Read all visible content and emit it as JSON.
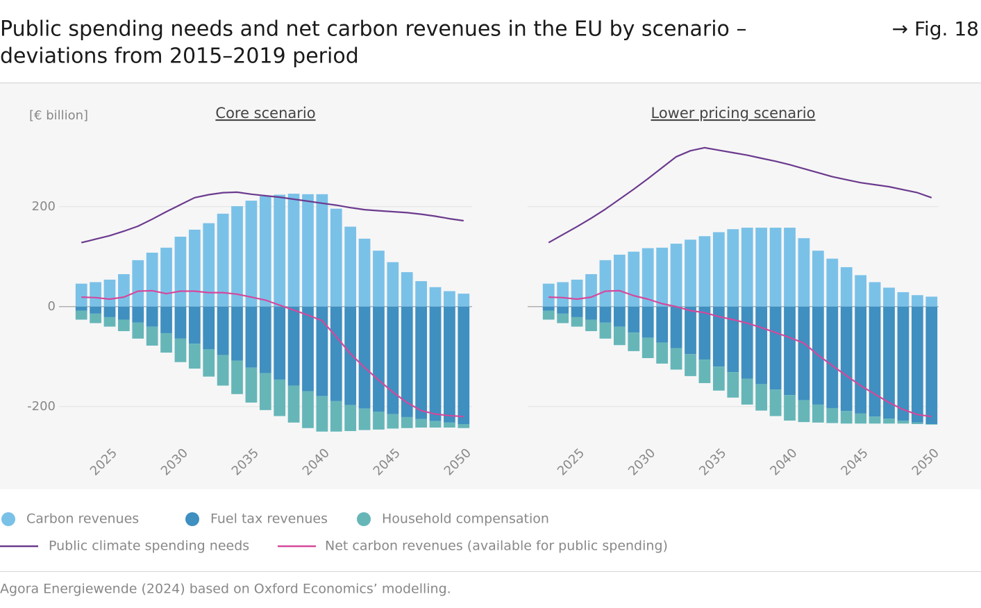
{
  "title_lines": [
    "Public spending needs and net carbon revenues in the EU by scenario –",
    "deviations from 2015–2019 period"
  ],
  "fig_label": "→ Fig. 18",
  "unit": "[€ billion]",
  "source": "Agora Energiewende (2024) based on Oxford Economics’ modelling.",
  "chart_data": [
    {
      "type": "bar",
      "title": "Core scenario",
      "x": [
        2023,
        2024,
        2025,
        2026,
        2027,
        2028,
        2029,
        2030,
        2031,
        2032,
        2033,
        2034,
        2035,
        2036,
        2037,
        2038,
        2039,
        2040,
        2041,
        2042,
        2043,
        2044,
        2045,
        2046,
        2047,
        2048,
        2049,
        2050
      ],
      "xlim": [
        2022.5,
        2050.5
      ],
      "xticks": [
        2025,
        2030,
        2035,
        2040,
        2045,
        2050
      ],
      "ylim": [
        -260,
        340
      ],
      "yticks": [
        -200,
        0,
        200
      ],
      "grid": true,
      "series": [
        {
          "name": "Carbon revenues",
          "type": "bar",
          "color": "#7ac1e8",
          "values": [
            46,
            49,
            54,
            65,
            93,
            108,
            118,
            140,
            154,
            167,
            186,
            201,
            212,
            221,
            224,
            226,
            225,
            225,
            196,
            160,
            136,
            112,
            89,
            69,
            51,
            39,
            31,
            26
          ]
        },
        {
          "name": "Fuel tax revenues",
          "type": "bar",
          "color": "#3f8fc0",
          "values": [
            -8,
            -14,
            -21,
            -26,
            -32,
            -40,
            -53,
            -64,
            -74,
            -85,
            -97,
            -108,
            -122,
            -133,
            -146,
            -158,
            -169,
            -179,
            -189,
            -197,
            -204,
            -210,
            -215,
            -221,
            -225,
            -229,
            -232,
            -235
          ]
        },
        {
          "name": "Household compensation",
          "type": "bar",
          "color": "#66b6b8",
          "values": [
            -18,
            -19,
            -19,
            -23,
            -32,
            -38,
            -39,
            -47,
            -50,
            -55,
            -61,
            -67,
            -70,
            -74,
            -73,
            -74,
            -74,
            -71,
            -61,
            -52,
            -43,
            -36,
            -29,
            -22,
            -17,
            -13,
            -10,
            -8
          ]
        },
        {
          "name": "Public climate spending needs",
          "type": "line",
          "color": "#6b3a8e",
          "values": [
            128,
            135,
            142,
            151,
            161,
            175,
            190,
            204,
            218,
            224,
            228,
            229,
            225,
            222,
            219,
            215,
            211,
            207,
            203,
            198,
            194,
            192,
            190,
            188,
            185,
            181,
            176,
            172
          ]
        },
        {
          "name": "Net carbon revenues (available for public spending)",
          "type": "line",
          "color": "#d5489b",
          "values": [
            19,
            18,
            15,
            19,
            31,
            32,
            26,
            31,
            31,
            28,
            28,
            25,
            19,
            13,
            3,
            -7,
            -17,
            -28,
            -60,
            -94,
            -122,
            -147,
            -171,
            -192,
            -208,
            -215,
            -218,
            -220
          ]
        }
      ]
    },
    {
      "type": "bar",
      "title": "Lower pricing scenario",
      "x": [
        2023,
        2024,
        2025,
        2026,
        2027,
        2028,
        2029,
        2030,
        2031,
        2032,
        2033,
        2034,
        2035,
        2036,
        2037,
        2038,
        2039,
        2040,
        2041,
        2042,
        2043,
        2044,
        2045,
        2046,
        2047,
        2048,
        2049,
        2050
      ],
      "xlim": [
        2022.5,
        2050.5
      ],
      "xticks": [
        2025,
        2030,
        2035,
        2040,
        2045,
        2050
      ],
      "ylim": [
        -260,
        340
      ],
      "yticks": [
        -200,
        0,
        200
      ],
      "grid": true,
      "series": [
        {
          "name": "Carbon revenues",
          "type": "bar",
          "color": "#7ac1e8",
          "values": [
            46,
            49,
            54,
            65,
            93,
            104,
            110,
            117,
            118,
            126,
            134,
            141,
            149,
            155,
            158,
            158,
            158,
            158,
            137,
            112,
            96,
            79,
            63,
            49,
            38,
            29,
            23,
            20
          ]
        },
        {
          "name": "Fuel tax revenues",
          "type": "bar",
          "color": "#3f8fc0",
          "values": [
            -8,
            -14,
            -21,
            -26,
            -32,
            -40,
            -52,
            -62,
            -72,
            -83,
            -95,
            -106,
            -120,
            -131,
            -144,
            -155,
            -166,
            -177,
            -187,
            -196,
            -203,
            -209,
            -214,
            -220,
            -224,
            -228,
            -232,
            -235
          ]
        },
        {
          "name": "Household compensation",
          "type": "bar",
          "color": "#66b6b8",
          "values": [
            -18,
            -19,
            -19,
            -23,
            -32,
            -37,
            -37,
            -41,
            -42,
            -43,
            -44,
            -47,
            -48,
            -51,
            -52,
            -53,
            -53,
            -51,
            -44,
            -36,
            -30,
            -25,
            -20,
            -14,
            -10,
            -6,
            -3,
            -1
          ]
        },
        {
          "name": "Public climate spending needs",
          "type": "line",
          "color": "#6b3a8e",
          "values": [
            128,
            144,
            160,
            177,
            195,
            215,
            235,
            256,
            278,
            300,
            312,
            318,
            313,
            308,
            303,
            297,
            291,
            284,
            276,
            268,
            260,
            254,
            248,
            244,
            240,
            234,
            228,
            218
          ]
        },
        {
          "name": "Net carbon revenues (available for public spending)",
          "type": "line",
          "color": "#d5489b",
          "values": [
            19,
            18,
            15,
            19,
            31,
            32,
            22,
            15,
            6,
            0,
            -8,
            -12,
            -20,
            -26,
            -33,
            -42,
            -52,
            -62,
            -73,
            -97,
            -118,
            -138,
            -158,
            -175,
            -192,
            -206,
            -216,
            -220
          ]
        }
      ]
    }
  ]
}
